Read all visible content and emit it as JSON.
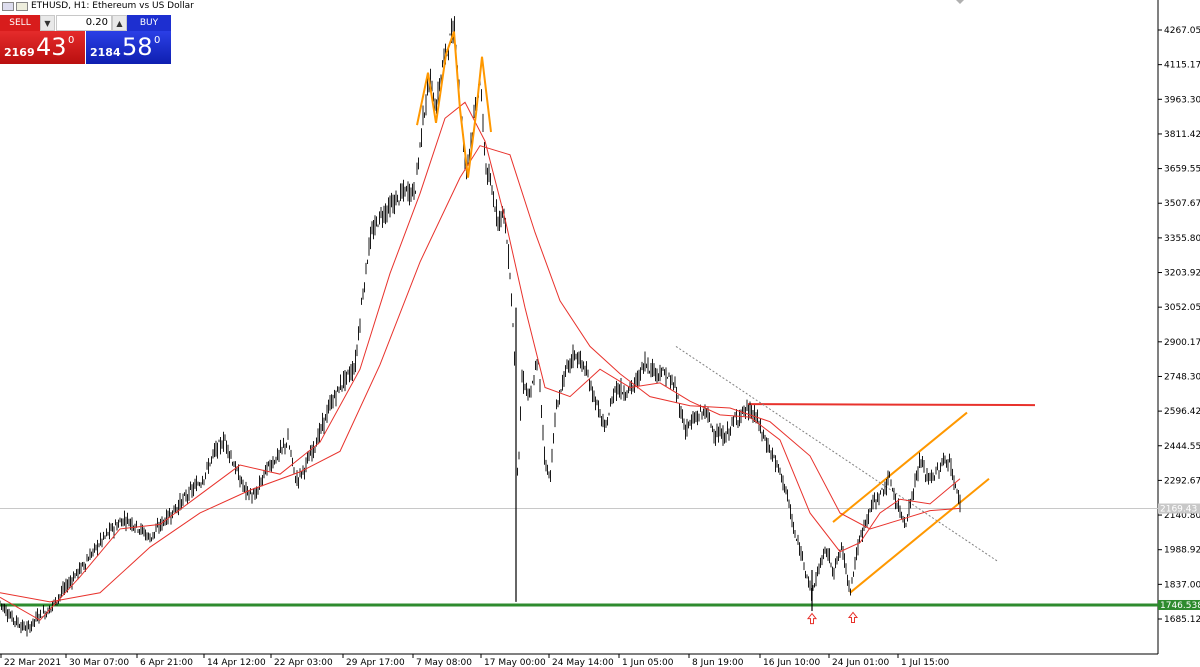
{
  "window": {
    "title": "ETHUSD, H1:  Ethereum vs US Dollar"
  },
  "trade_panel": {
    "sell_label": "SELL",
    "buy_label": "BUY",
    "lot_value": "0.20",
    "sell_price_small": "2169",
    "sell_price_big": "43",
    "sell_price_sup": "0",
    "buy_price_small": "2184",
    "buy_price_big": "58",
    "buy_price_sup": "0",
    "sell_color": "#d81c1c",
    "buy_color": "#1d2fd0"
  },
  "chart_data": {
    "type": "candlestick",
    "symbol": "ETHUSD",
    "timeframe": "H1",
    "ylim": [
      1610,
      4340
    ],
    "y_ticks": [
      1685.125,
      1837.0,
      1988.925,
      2140.8,
      2292.675,
      2444.55,
      2596.425,
      2748.3,
      2900.175,
      3052.05,
      3203.925,
      3355.8,
      3507.675,
      3659.55,
      3811.425,
      3963.3,
      4115.175,
      4267.05
    ],
    "y_tick_labels": [
      "1685.125",
      "1837.000",
      "1988.925",
      "2140.800",
      "2292.675",
      "2444.550",
      "2596.425",
      "2748.300",
      "2900.175",
      "3052.050",
      "3203.925",
      "3355.800",
      "3507.675",
      "3659.550",
      "3811.425",
      "3963.300",
      "4115.175",
      "4267.050"
    ],
    "x_labels": [
      "22 Mar 2021",
      "30 Mar 07:00",
      "6 Apr 21:00",
      "14 Apr 12:00",
      "22 Apr 03:00",
      "29 Apr 17:00",
      "7 May 08:00",
      "17 May 00:00",
      "24 May 14:00",
      "1 Jun 05:00",
      "8 Jun 19:00",
      "16 Jun 10:00",
      "24 Jun 01:00",
      "1 Jul 15:00"
    ],
    "price_path": [
      [
        0,
        1760
      ],
      [
        10,
        1700
      ],
      [
        20,
        1660
      ],
      [
        28,
        1640
      ],
      [
        38,
        1700
      ],
      [
        48,
        1720
      ],
      [
        60,
        1790
      ],
      [
        72,
        1860
      ],
      [
        85,
        1930
      ],
      [
        100,
        2020
      ],
      [
        112,
        2080
      ],
      [
        125,
        2125
      ],
      [
        138,
        2090
      ],
      [
        150,
        2040
      ],
      [
        163,
        2110
      ],
      [
        176,
        2170
      ],
      [
        190,
        2240
      ],
      [
        203,
        2300
      ],
      [
        215,
        2420
      ],
      [
        225,
        2470
      ],
      [
        235,
        2350
      ],
      [
        245,
        2250
      ],
      [
        255,
        2220
      ],
      [
        266,
        2340
      ],
      [
        278,
        2400
      ],
      [
        288,
        2470
      ],
      [
        296,
        2290
      ],
      [
        305,
        2350
      ],
      [
        318,
        2480
      ],
      [
        330,
        2620
      ],
      [
        342,
        2720
      ],
      [
        355,
        2790
      ],
      [
        362,
        3080
      ],
      [
        370,
        3350
      ],
      [
        380,
        3450
      ],
      [
        392,
        3500
      ],
      [
        405,
        3560
      ],
      [
        415,
        3560
      ],
      [
        423,
        3880
      ],
      [
        430,
        4060
      ],
      [
        436,
        3920
      ],
      [
        442,
        4100
      ],
      [
        448,
        4200
      ],
      [
        455,
        4280
      ],
      [
        460,
        3950
      ],
      [
        466,
        3650
      ],
      [
        472,
        3820
      ],
      [
        480,
        4050
      ],
      [
        486,
        3660
      ],
      [
        492,
        3560
      ],
      [
        498,
        3440
      ],
      [
        504,
        3470
      ],
      [
        510,
        3200
      ],
      [
        514,
        2900
      ],
      [
        518,
        2280
      ],
      [
        522,
        2740
      ],
      [
        530,
        2650
      ],
      [
        538,
        2830
      ],
      [
        545,
        2380
      ],
      [
        550,
        2300
      ],
      [
        556,
        2600
      ],
      [
        565,
        2760
      ],
      [
        575,
        2850
      ],
      [
        585,
        2780
      ],
      [
        595,
        2650
      ],
      [
        605,
        2510
      ],
      [
        615,
        2700
      ],
      [
        625,
        2680
      ],
      [
        635,
        2710
      ],
      [
        645,
        2810
      ],
      [
        655,
        2770
      ],
      [
        665,
        2760
      ],
      [
        675,
        2700
      ],
      [
        685,
        2520
      ],
      [
        695,
        2560
      ],
      [
        705,
        2600
      ],
      [
        715,
        2500
      ],
      [
        725,
        2480
      ],
      [
        735,
        2560
      ],
      [
        745,
        2600
      ],
      [
        755,
        2580
      ],
      [
        765,
        2470
      ],
      [
        775,
        2380
      ],
      [
        785,
        2270
      ],
      [
        795,
        2050
      ],
      [
        805,
        1920
      ],
      [
        812,
        1790
      ],
      [
        818,
        1900
      ],
      [
        826,
        1990
      ],
      [
        834,
        1900
      ],
      [
        842,
        2000
      ],
      [
        850,
        1810
      ],
      [
        858,
        2000
      ],
      [
        866,
        2120
      ],
      [
        874,
        2200
      ],
      [
        882,
        2240
      ],
      [
        890,
        2300
      ],
      [
        898,
        2170
      ],
      [
        906,
        2110
      ],
      [
        914,
        2260
      ],
      [
        920,
        2380
      ],
      [
        928,
        2300
      ],
      [
        936,
        2320
      ],
      [
        944,
        2380
      ],
      [
        950,
        2370
      ],
      [
        956,
        2250
      ],
      [
        960,
        2200
      ]
    ],
    "ma_fast": [
      [
        0,
        1780
      ],
      [
        40,
        1680
      ],
      [
        80,
        1870
      ],
      [
        120,
        2080
      ],
      [
        160,
        2100
      ],
      [
        200,
        2230
      ],
      [
        240,
        2360
      ],
      [
        280,
        2320
      ],
      [
        320,
        2460
      ],
      [
        360,
        2780
      ],
      [
        390,
        3200
      ],
      [
        420,
        3550
      ],
      [
        445,
        3880
      ],
      [
        465,
        3950
      ],
      [
        485,
        3780
      ],
      [
        505,
        3440
      ],
      [
        525,
        3050
      ],
      [
        545,
        2700
      ],
      [
        570,
        2660
      ],
      [
        600,
        2780
      ],
      [
        630,
        2700
      ],
      [
        660,
        2720
      ],
      [
        690,
        2640
      ],
      [
        720,
        2580
      ],
      [
        750,
        2570
      ],
      [
        780,
        2470
      ],
      [
        810,
        2150
      ],
      [
        840,
        1980
      ],
      [
        860,
        2020
      ],
      [
        880,
        2150
      ],
      [
        900,
        2210
      ],
      [
        930,
        2190
      ],
      [
        960,
        2300
      ]
    ],
    "ma_slow": [
      [
        0,
        1800
      ],
      [
        50,
        1760
      ],
      [
        100,
        1800
      ],
      [
        150,
        2000
      ],
      [
        200,
        2150
      ],
      [
        250,
        2250
      ],
      [
        300,
        2330
      ],
      [
        340,
        2420
      ],
      [
        380,
        2800
      ],
      [
        420,
        3250
      ],
      [
        460,
        3620
      ],
      [
        480,
        3760
      ],
      [
        510,
        3720
      ],
      [
        535,
        3380
      ],
      [
        560,
        3080
      ],
      [
        590,
        2880
      ],
      [
        620,
        2760
      ],
      [
        650,
        2660
      ],
      [
        690,
        2620
      ],
      [
        730,
        2610
      ],
      [
        770,
        2550
      ],
      [
        810,
        2400
      ],
      [
        840,
        2150
      ],
      [
        870,
        2080
      ],
      [
        900,
        2120
      ],
      [
        930,
        2160
      ],
      [
        960,
        2170
      ]
    ],
    "resistance_level": 2596.425,
    "support_level": 1746.538,
    "support_label": "1746.538",
    "current_price_level": 2169.43,
    "current_price_label": "2169.43",
    "signal_arrows": [
      [
        812,
        1700
      ],
      [
        853,
        1705
      ]
    ],
    "colors": {
      "candles": "#000000",
      "ma": "#e8322c",
      "resistance": "#e8322c",
      "support": "#2e8b2e",
      "channel": "#ff9800",
      "trendline": "#808080",
      "arrows": "#e8322c"
    }
  }
}
